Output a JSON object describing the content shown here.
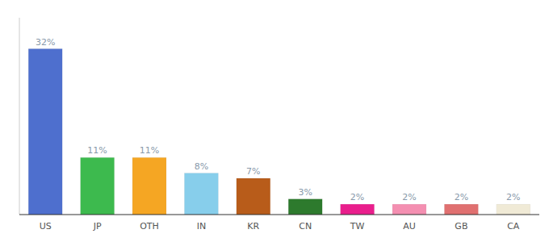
{
  "chart_data": {
    "type": "bar",
    "categories": [
      "US",
      "JP",
      "OTH",
      "IN",
      "KR",
      "CN",
      "TW",
      "AU",
      "GB",
      "CA"
    ],
    "values": [
      32,
      11,
      11,
      8,
      7,
      3,
      2,
      2,
      2,
      2
    ],
    "value_labels": [
      "32%",
      "11%",
      "11%",
      "8%",
      "7%",
      "3%",
      "2%",
      "2%",
      "2%",
      "2%"
    ],
    "colors": [
      "#4e6fce",
      "#3dba4e",
      "#f5a623",
      "#87ceeb",
      "#b85c1a",
      "#2d7a2d",
      "#e91e8c",
      "#f48fb1",
      "#e07070",
      "#f0ead6"
    ],
    "ylim": [
      0,
      38
    ],
    "data_labels": true,
    "tick_labels": "x",
    "grid": false
  }
}
